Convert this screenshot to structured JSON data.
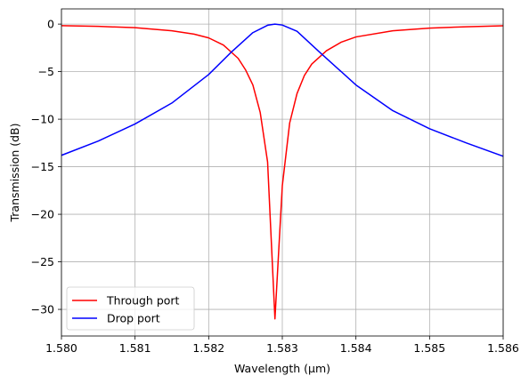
{
  "chart_data": {
    "type": "line",
    "title": "",
    "xlabel": "Wavelength (μm)",
    "ylabel": "Transmission (dB)",
    "xlim": [
      1.58,
      1.586
    ],
    "ylim": [
      -32.8,
      1.6
    ],
    "grid": true,
    "legend_position": "lower-left",
    "x_ticks": [
      1.58,
      1.581,
      1.582,
      1.583,
      1.584,
      1.585,
      1.586
    ],
    "x_tick_labels": [
      "1.580",
      "1.581",
      "1.582",
      "1.583",
      "1.584",
      "1.585",
      "1.586"
    ],
    "y_ticks": [
      0,
      -5,
      -10,
      -15,
      -20,
      -25,
      -30
    ],
    "y_tick_labels": [
      "0",
      "−5",
      "−10",
      "−15",
      "−20",
      "−25",
      "−30"
    ],
    "series": [
      {
        "name": "Through port",
        "color": "#ff0000",
        "x": [
          1.58,
          1.5805,
          1.581,
          1.5815,
          1.5818,
          1.582,
          1.5822,
          1.5824,
          1.5825,
          1.5826,
          1.5827,
          1.5828,
          1.5829,
          1.583,
          1.5831,
          1.5832,
          1.5833,
          1.5834,
          1.5836,
          1.5838,
          1.584,
          1.5845,
          1.585,
          1.5855,
          1.586
        ],
        "y": [
          -0.16,
          -0.24,
          -0.38,
          -0.7,
          -1.05,
          -1.45,
          -2.2,
          -3.6,
          -4.8,
          -6.4,
          -9.3,
          -14.5,
          -31.0,
          -17.0,
          -10.4,
          -7.3,
          -5.4,
          -4.2,
          -2.8,
          -1.9,
          -1.35,
          -0.7,
          -0.42,
          -0.28,
          -0.18
        ]
      },
      {
        "name": "Drop port",
        "color": "#0000ff",
        "x": [
          1.58,
          1.5805,
          1.581,
          1.5815,
          1.582,
          1.5823,
          1.5826,
          1.5828,
          1.5829,
          1.583,
          1.5832,
          1.5835,
          1.584,
          1.5845,
          1.585,
          1.5855,
          1.586
        ],
        "y": [
          -13.8,
          -12.3,
          -10.5,
          -8.3,
          -5.3,
          -3.0,
          -0.9,
          -0.12,
          0.0,
          -0.1,
          -0.75,
          -2.9,
          -6.4,
          -9.1,
          -11.0,
          -12.5,
          -13.9
        ]
      }
    ]
  }
}
